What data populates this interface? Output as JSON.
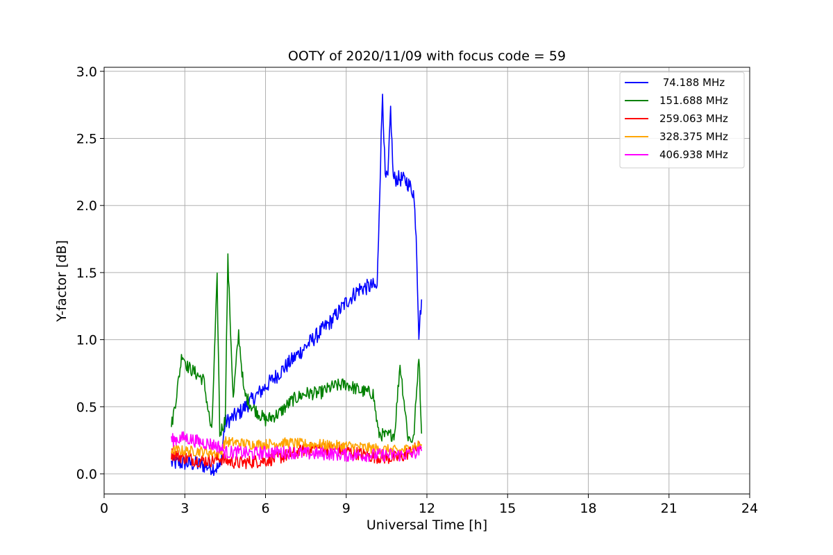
{
  "chart_data": {
    "type": "line",
    "title": "OOTY of 2020/11/09 with focus code = 59",
    "xlabel": "Universal Time [h]",
    "ylabel": "Y-factor [dB]",
    "xlim": [
      0,
      24
    ],
    "ylim": [
      -0.15,
      3.03
    ],
    "xticks": [
      "0",
      "3",
      "6",
      "9",
      "12",
      "15",
      "18",
      "21",
      "24"
    ],
    "yticks": [
      "0.0",
      "0.5",
      "1.0",
      "1.5",
      "2.0",
      "2.5",
      "3.0"
    ],
    "grid": true,
    "legend_position": "top-right",
    "series": [
      {
        "name": " 74.188 MHz",
        "color": "#0000ff",
        "x": [
          2.5,
          3.0,
          3.5,
          4.0,
          4.3,
          4.5,
          5.0,
          5.5,
          6.0,
          6.5,
          7.0,
          7.5,
          8.0,
          8.5,
          9.0,
          9.5,
          10.0,
          10.15,
          10.25,
          10.35,
          10.45,
          10.55,
          10.65,
          10.75,
          11.0,
          11.25,
          11.5,
          11.6,
          11.7,
          11.8
        ],
        "y": [
          0.08,
          0.08,
          0.07,
          0.05,
          0.04,
          0.38,
          0.45,
          0.55,
          0.65,
          0.75,
          0.85,
          0.95,
          1.05,
          1.15,
          1.28,
          1.38,
          1.4,
          1.38,
          2.15,
          2.85,
          2.2,
          2.2,
          2.72,
          2.2,
          2.2,
          2.18,
          2.1,
          1.8,
          1.05,
          1.3
        ]
      },
      {
        "name": "151.688 MHz",
        "color": "#008000",
        "x": [
          2.5,
          2.7,
          2.9,
          3.1,
          3.4,
          3.7,
          4.0,
          4.2,
          4.3,
          4.5,
          4.6,
          4.8,
          5.0,
          5.2,
          5.5,
          6.0,
          6.5,
          7.0,
          7.5,
          8.0,
          8.5,
          9.0,
          9.5,
          10.0,
          10.2,
          10.5,
          10.8,
          11.0,
          11.3,
          11.5,
          11.6,
          11.7,
          11.8
        ],
        "y": [
          0.35,
          0.6,
          0.9,
          0.8,
          0.75,
          0.7,
          0.3,
          1.45,
          0.3,
          0.4,
          1.6,
          0.55,
          1.05,
          0.6,
          0.5,
          0.4,
          0.45,
          0.55,
          0.6,
          0.6,
          0.65,
          0.67,
          0.62,
          0.6,
          0.3,
          0.28,
          0.3,
          0.82,
          0.27,
          0.25,
          0.55,
          0.9,
          0.3
        ]
      },
      {
        "name": "259.063 MHz",
        "color": "#ff0000",
        "x": [
          2.5,
          3.0,
          3.5,
          4.0,
          4.3,
          4.5,
          5.0,
          5.5,
          6.0,
          6.5,
          7.0,
          7.5,
          8.0,
          8.5,
          9.0,
          9.5,
          10.0,
          10.5,
          11.0,
          11.5,
          11.8
        ],
        "y": [
          0.15,
          0.12,
          0.1,
          0.1,
          0.12,
          0.1,
          0.08,
          0.09,
          0.1,
          0.12,
          0.15,
          0.18,
          0.2,
          0.18,
          0.17,
          0.15,
          0.13,
          0.12,
          0.12,
          0.18,
          0.2
        ]
      },
      {
        "name": "328.375 MHz",
        "color": "#ffa500",
        "x": [
          2.5,
          3.0,
          3.5,
          4.0,
          4.3,
          4.5,
          5.0,
          5.5,
          6.0,
          6.5,
          7.0,
          7.5,
          8.0,
          8.5,
          9.0,
          9.5,
          10.0,
          10.5,
          11.0,
          11.5,
          11.8
        ],
        "y": [
          0.18,
          0.17,
          0.17,
          0.16,
          0.15,
          0.24,
          0.23,
          0.22,
          0.22,
          0.23,
          0.23,
          0.22,
          0.22,
          0.21,
          0.21,
          0.2,
          0.19,
          0.18,
          0.17,
          0.2,
          0.22
        ]
      },
      {
        "name": "406.938 MHz",
        "color": "#ff00ff",
        "x": [
          2.5,
          3.0,
          3.5,
          4.0,
          4.3,
          4.5,
          5.0,
          5.5,
          6.0,
          6.5,
          7.0,
          7.5,
          8.0,
          8.5,
          9.0,
          9.5,
          10.0,
          10.5,
          11.0,
          11.5,
          11.8
        ],
        "y": [
          0.25,
          0.27,
          0.24,
          0.22,
          0.2,
          0.16,
          0.16,
          0.15,
          0.16,
          0.16,
          0.16,
          0.15,
          0.15,
          0.15,
          0.14,
          0.14,
          0.14,
          0.14,
          0.14,
          0.15,
          0.17
        ]
      }
    ]
  }
}
